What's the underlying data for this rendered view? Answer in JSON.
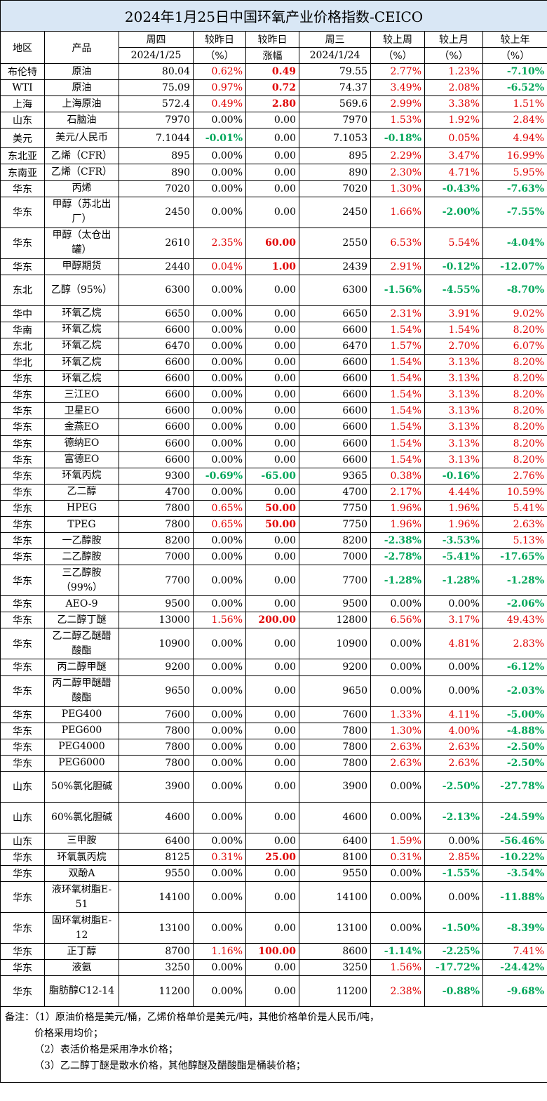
{
  "title": "2024年1月25日中国环氧产业价格指数-CEICO",
  "headers": {
    "region": "地区",
    "product": "产品",
    "thu": "周四",
    "thu_date": "2024/1/25",
    "vs_yesterday": "较昨日",
    "vs_yesterday_unit": "（%）",
    "vs_yesterday2": "较昨日",
    "change": "涨幅",
    "wed": "周三",
    "wed_date": "2024/1/24",
    "vs_week": "较上周",
    "vs_week_unit": "（%）",
    "vs_month": "较上月",
    "vs_month_unit": "（%）",
    "vs_year": "较上年",
    "vs_year_unit": "（%）"
  },
  "colors": {
    "red": "#e00000",
    "green": "#00a65a",
    "title_bg": "#d9e7f5"
  },
  "rows": [
    {
      "region": "布伦特",
      "product": "原油",
      "thu": "80.04",
      "pct": "0.62%",
      "chg": "0.49",
      "wed": "79.55",
      "wk": "2.77%",
      "mo": "1.23%",
      "yr": "-7.10%",
      "h": 1
    },
    {
      "region": "WTI",
      "product": "原油",
      "thu": "75.09",
      "pct": "0.97%",
      "chg": "0.72",
      "wed": "74.37",
      "wk": "3.49%",
      "mo": "2.08%",
      "yr": "-6.52%",
      "h": 1
    },
    {
      "region": "上海",
      "product": "上海原油",
      "thu": "572.4",
      "pct": "0.49%",
      "chg": "2.80",
      "wed": "569.6",
      "wk": "2.99%",
      "mo": "3.38%",
      "yr": "1.51%",
      "h": 1
    },
    {
      "region": "山东",
      "product": "石脑油",
      "thu": "7970",
      "pct": "0.00%",
      "chg": "0.00",
      "wed": "7970",
      "wk": "1.53%",
      "mo": "1.92%",
      "yr": "2.84%",
      "h": 1
    },
    {
      "region": "美元",
      "product": "美元/人民币",
      "thu": "7.1044",
      "pct": "-0.01%",
      "chg": "0.00",
      "wed": "7.1053",
      "wk": "-0.18%",
      "mo": "0.05%",
      "yr": "4.94%",
      "h": 1.25
    },
    {
      "region": "东北亚",
      "product": "乙烯（CFR）",
      "thu": "895",
      "pct": "0.00%",
      "chg": "0.00",
      "wed": "895",
      "wk": "2.29%",
      "mo": "3.47%",
      "yr": "16.99%",
      "h": 1
    },
    {
      "region": "东南亚",
      "product": "乙烯（CFR）",
      "thu": "890",
      "pct": "0.00%",
      "chg": "0.00",
      "wed": "890",
      "wk": "2.30%",
      "mo": "4.71%",
      "yr": "5.95%",
      "h": 1
    },
    {
      "region": "华东",
      "product": "丙烯",
      "thu": "7020",
      "pct": "0.00%",
      "chg": "0.00",
      "wed": "7020",
      "wk": "1.30%",
      "mo": "-0.43%",
      "yr": "-7.63%",
      "h": 1
    },
    {
      "region": "华东",
      "product": "甲醇（苏北出厂）",
      "thu": "2450",
      "pct": "0.00%",
      "chg": "0.00",
      "wed": "2450",
      "wk": "1.66%",
      "mo": "-2.00%",
      "yr": "-7.55%",
      "h": 2
    },
    {
      "region": "华东",
      "product": "甲醇（太仓出罐）",
      "thu": "2610",
      "pct": "2.35%",
      "chg": "60.00",
      "wed": "2550",
      "wk": "6.53%",
      "mo": "5.54%",
      "yr": "-4.04%",
      "h": 2
    },
    {
      "region": "华东",
      "product": "甲醇期货",
      "thu": "2440",
      "pct": "0.04%",
      "chg": "1.00",
      "wed": "2439",
      "wk": "2.91%",
      "mo": "-0.12%",
      "yr": "-12.07%",
      "h": 1
    },
    {
      "region": "东北",
      "product": "乙醇（95%）",
      "thu": "6300",
      "pct": "0.00%",
      "chg": "0.00",
      "wed": "6300",
      "wk": "-1.56%",
      "mo": "-4.55%",
      "yr": "-8.70%",
      "h": 2
    },
    {
      "region": "华中",
      "product": "环氧乙烷",
      "thu": "6650",
      "pct": "0.00%",
      "chg": "0.00",
      "wed": "6650",
      "wk": "2.31%",
      "mo": "3.91%",
      "yr": "9.02%",
      "h": 1
    },
    {
      "region": "华南",
      "product": "环氧乙烷",
      "thu": "6600",
      "pct": "0.00%",
      "chg": "0.00",
      "wed": "6600",
      "wk": "1.54%",
      "mo": "1.54%",
      "yr": "8.20%",
      "h": 1
    },
    {
      "region": "东北",
      "product": "环氧乙烷",
      "thu": "6470",
      "pct": "0.00%",
      "chg": "0.00",
      "wed": "6470",
      "wk": "1.57%",
      "mo": "2.70%",
      "yr": "6.07%",
      "h": 1
    },
    {
      "region": "华北",
      "product": "环氧乙烷",
      "thu": "6600",
      "pct": "0.00%",
      "chg": "0.00",
      "wed": "6600",
      "wk": "1.54%",
      "mo": "3.13%",
      "yr": "8.20%",
      "h": 1
    },
    {
      "region": "华东",
      "product": "环氧乙烷",
      "thu": "6600",
      "pct": "0.00%",
      "chg": "0.00",
      "wed": "6600",
      "wk": "1.54%",
      "mo": "3.13%",
      "yr": "8.20%",
      "h": 1
    },
    {
      "region": "华东",
      "product": "三江EO",
      "thu": "6600",
      "pct": "0.00%",
      "chg": "0.00",
      "wed": "6600",
      "wk": "1.54%",
      "mo": "3.13%",
      "yr": "8.20%",
      "h": 1
    },
    {
      "region": "华东",
      "product": "卫星EO",
      "thu": "6600",
      "pct": "0.00%",
      "chg": "0.00",
      "wed": "6600",
      "wk": "1.54%",
      "mo": "3.13%",
      "yr": "8.20%",
      "h": 1
    },
    {
      "region": "华东",
      "product": "金燕EO",
      "thu": "6600",
      "pct": "0.00%",
      "chg": "0.00",
      "wed": "6600",
      "wk": "1.54%",
      "mo": "3.13%",
      "yr": "8.20%",
      "h": 1
    },
    {
      "region": "华东",
      "product": "德纳EO",
      "thu": "6600",
      "pct": "0.00%",
      "chg": "0.00",
      "wed": "6600",
      "wk": "1.54%",
      "mo": "3.13%",
      "yr": "8.20%",
      "h": 1
    },
    {
      "region": "华东",
      "product": "富德EO",
      "thu": "6600",
      "pct": "0.00%",
      "chg": "0.00",
      "wed": "6600",
      "wk": "1.54%",
      "mo": "3.13%",
      "yr": "8.20%",
      "h": 1
    },
    {
      "region": "华东",
      "product": "环氧丙烷",
      "thu": "9300",
      "pct": "-0.69%",
      "chg": "-65.00",
      "wed": "9365",
      "wk": "0.38%",
      "mo": "-0.16%",
      "yr": "2.76%",
      "h": 1
    },
    {
      "region": "华东",
      "product": "乙二醇",
      "thu": "4700",
      "pct": "0.00%",
      "chg": "0.00",
      "wed": "4700",
      "wk": "2.17%",
      "mo": "4.44%",
      "yr": "10.59%",
      "h": 1
    },
    {
      "region": "华东",
      "product": "HPEG",
      "thu": "7800",
      "pct": "0.65%",
      "chg": "50.00",
      "wed": "7750",
      "wk": "1.96%",
      "mo": "1.96%",
      "yr": "5.41%",
      "h": 1
    },
    {
      "region": "华东",
      "product": "TPEG",
      "thu": "7800",
      "pct": "0.65%",
      "chg": "50.00",
      "wed": "7750",
      "wk": "1.96%",
      "mo": "1.96%",
      "yr": "2.63%",
      "h": 1
    },
    {
      "region": "华东",
      "product": "一乙醇胺",
      "thu": "8200",
      "pct": "0.00%",
      "chg": "0.00",
      "wed": "8200",
      "wk": "-2.38%",
      "mo": "-3.53%",
      "yr": "5.13%",
      "h": 1
    },
    {
      "region": "华东",
      "product": "二乙醇胺",
      "thu": "7000",
      "pct": "0.00%",
      "chg": "0.00",
      "wed": "7000",
      "wk": "-2.78%",
      "mo": "-5.41%",
      "yr": "-17.65%",
      "h": 1
    },
    {
      "region": "华东",
      "product": "三乙醇胺（99%）",
      "thu": "7700",
      "pct": "0.00%",
      "chg": "0.00",
      "wed": "7700",
      "wk": "-1.28%",
      "mo": "-1.28%",
      "yr": "-1.28%",
      "h": 2
    },
    {
      "region": "华东",
      "product": "AEO-9",
      "thu": "9500",
      "pct": "0.00%",
      "chg": "0.00",
      "wed": "9500",
      "wk": "0.00%",
      "mo": "0.00%",
      "yr": "-2.06%",
      "h": 1
    },
    {
      "region": "华东",
      "product": "乙二醇丁醚",
      "thu": "13000",
      "pct": "1.56%",
      "chg": "200.00",
      "wed": "12800",
      "wk": "6.56%",
      "mo": "3.17%",
      "yr": "49.43%",
      "h": 1
    },
    {
      "region": "华东",
      "product": "乙二醇乙醚醋酸酯",
      "thu": "10900",
      "pct": "0.00%",
      "chg": "0.00",
      "wed": "10900",
      "wk": "0.00%",
      "mo": "4.81%",
      "yr": "2.83%",
      "h": 2
    },
    {
      "region": "华东",
      "product": "丙二醇甲醚",
      "thu": "9200",
      "pct": "0.00%",
      "chg": "0.00",
      "wed": "9200",
      "wk": "0.00%",
      "mo": "0.00%",
      "yr": "-6.12%",
      "h": 1
    },
    {
      "region": "华东",
      "product": "丙二醇甲醚醋酸酯",
      "thu": "9650",
      "pct": "0.00%",
      "chg": "0.00",
      "wed": "9650",
      "wk": "0.00%",
      "mo": "0.00%",
      "yr": "-2.03%",
      "h": 2
    },
    {
      "region": "华东",
      "product": "PEG400",
      "thu": "7600",
      "pct": "0.00%",
      "chg": "0.00",
      "wed": "7600",
      "wk": "1.33%",
      "mo": "4.11%",
      "yr": "-5.00%",
      "h": 1
    },
    {
      "region": "华东",
      "product": "PEG600",
      "thu": "7800",
      "pct": "0.00%",
      "chg": "0.00",
      "wed": "7800",
      "wk": "1.30%",
      "mo": "4.00%",
      "yr": "-4.88%",
      "h": 1
    },
    {
      "region": "华东",
      "product": "PEG4000",
      "thu": "7800",
      "pct": "0.00%",
      "chg": "0.00",
      "wed": "7800",
      "wk": "2.63%",
      "mo": "2.63%",
      "yr": "-2.50%",
      "h": 1
    },
    {
      "region": "华东",
      "product": "PEG6000",
      "thu": "7800",
      "pct": "0.00%",
      "chg": "0.00",
      "wed": "7800",
      "wk": "2.63%",
      "mo": "2.63%",
      "yr": "-2.50%",
      "h": 1
    },
    {
      "region": "山东",
      "product": "50%氯化胆碱",
      "thu": "3900",
      "pct": "0.00%",
      "chg": "0.00",
      "wed": "3900",
      "wk": "0.00%",
      "mo": "-2.50%",
      "yr": "-27.78%",
      "h": 2
    },
    {
      "region": "山东",
      "product": "60%氯化胆碱",
      "thu": "4600",
      "pct": "0.00%",
      "chg": "0.00",
      "wed": "4600",
      "wk": "0.00%",
      "mo": "-2.13%",
      "yr": "-24.59%",
      "h": 2
    },
    {
      "region": "山东",
      "product": "三甲胺",
      "thu": "6400",
      "pct": "0.00%",
      "chg": "0.00",
      "wed": "6400",
      "wk": "1.59%",
      "mo": "0.00%",
      "yr": "-56.46%",
      "h": 1
    },
    {
      "region": "华东",
      "product": "环氧氯丙烷",
      "thu": "8125",
      "pct": "0.31%",
      "chg": "25.00",
      "wed": "8100",
      "wk": "0.31%",
      "mo": "2.85%",
      "yr": "-10.22%",
      "h": 1
    },
    {
      "region": "华东",
      "product": "双酚A",
      "thu": "9550",
      "pct": "0.00%",
      "chg": "0.00",
      "wed": "9550",
      "wk": "0.00%",
      "mo": "-1.55%",
      "yr": "-3.54%",
      "h": 1
    },
    {
      "region": "华东",
      "product": "液环氧树脂E-51",
      "thu": "14100",
      "pct": "0.00%",
      "chg": "0.00",
      "wed": "14100",
      "wk": "0.00%",
      "mo": "0.00%",
      "yr": "-11.88%",
      "h": 2
    },
    {
      "region": "华东",
      "product": "固环氧树脂E-12",
      "thu": "13100",
      "pct": "0.00%",
      "chg": "0.00",
      "wed": "13100",
      "wk": "0.00%",
      "mo": "-1.50%",
      "yr": "-8.39%",
      "h": 2
    },
    {
      "region": "华东",
      "product": "正丁醇",
      "thu": "8700",
      "pct": "1.16%",
      "chg": "100.00",
      "wed": "8600",
      "wk": "-1.14%",
      "mo": "-2.25%",
      "yr": "7.41%",
      "h": 1
    },
    {
      "region": "华东",
      "product": "液氨",
      "thu": "3250",
      "pct": "0.00%",
      "chg": "0.00",
      "wed": "3250",
      "wk": "1.56%",
      "mo": "-17.72%",
      "yr": "-24.42%",
      "h": 1
    },
    {
      "region": "华东",
      "product": "脂肪醇C12-14",
      "thu": "11200",
      "pct": "0.00%",
      "chg": "0.00",
      "wed": "11200",
      "wk": "2.38%",
      "mo": "-0.88%",
      "yr": "-9.68%",
      "h": 2
    }
  ],
  "notes": [
    "备注：（1）原油价格是美元/桶，乙烯价格单价是美元/吨，其他价格单价是人民币/吨，",
    "价格采用均价；",
    "（2）表活价格是采用净水价格；",
    "（3）乙二醇丁醚是散水价格，其他醇醚及醋酸酯是桶装价格；"
  ]
}
